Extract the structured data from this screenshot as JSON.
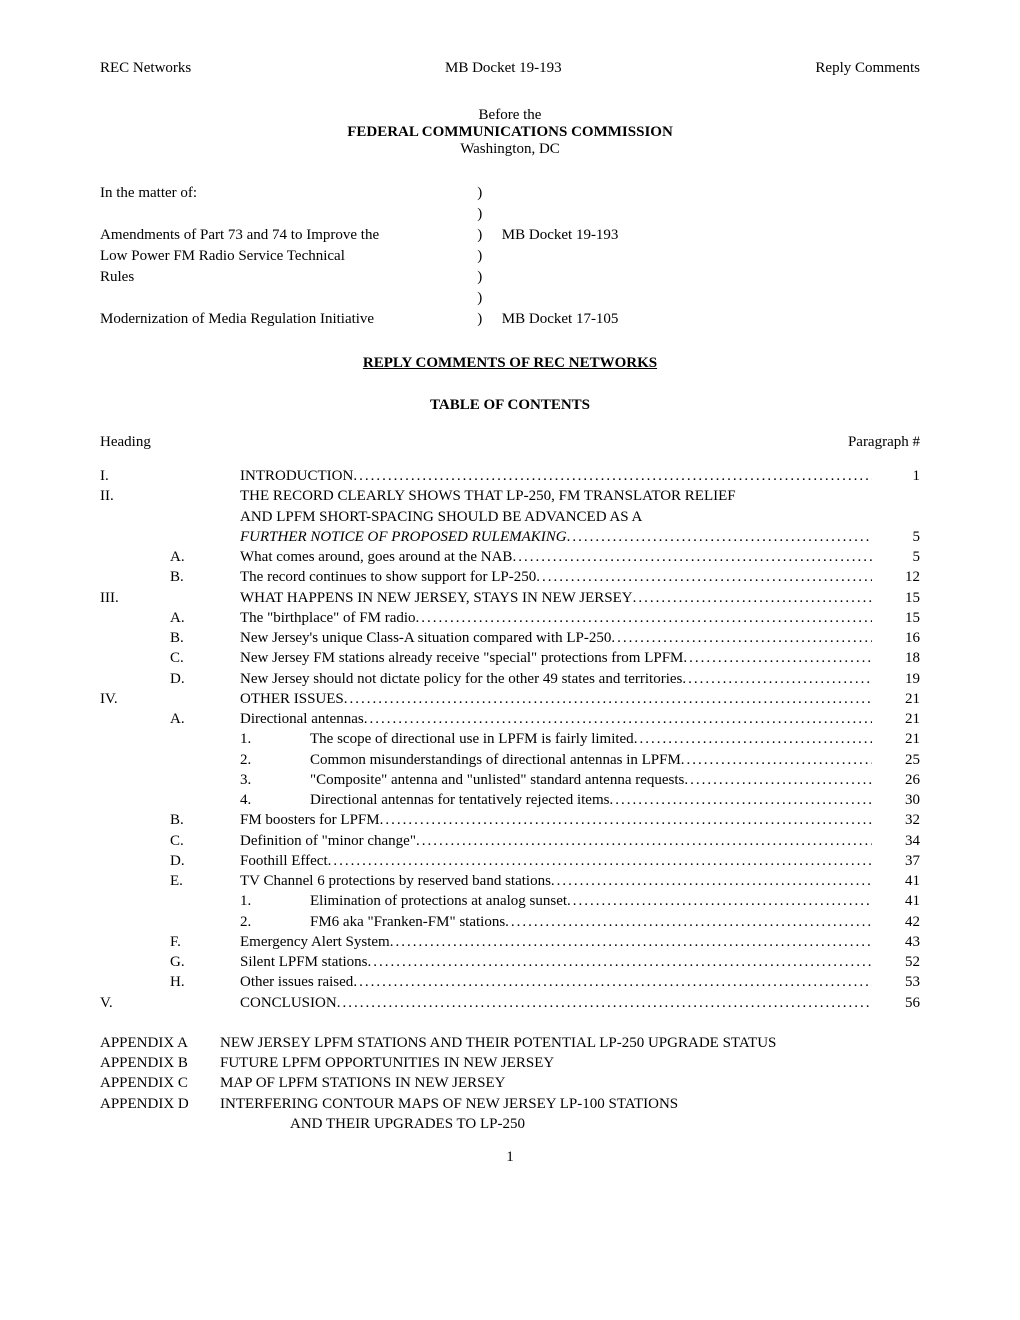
{
  "header": {
    "left": "REC Networks",
    "center": "MB Docket 19-193",
    "right": "Reply Comments"
  },
  "title": {
    "line1": "Before the",
    "line2": "FEDERAL COMMUNICATIONS COMMISSION",
    "line3": "Washington, DC"
  },
  "caption": {
    "intro": "In the matter of:",
    "item1_l1": "Amendments of Part 73 and 74 to Improve the",
    "item1_l2": "Low Power FM Radio Service Technical",
    "item1_l3": "Rules",
    "item1_docket": "MB Docket 19-193",
    "item2_l1": "Modernization of Media Regulation Initiative",
    "item2_docket": "MB Docket 17-105"
  },
  "reply_title": "REPLY COMMENTS OF REC NETWORKS",
  "toc_title": "TABLE OF CONTENTS",
  "heading_label": "Heading",
  "paragraph_label": "Paragraph #",
  "toc": [
    {
      "n1": "I.",
      "n2": "",
      "n3": "",
      "text": "INTRODUCTION",
      "page": "1",
      "leader": true
    },
    {
      "n1": "II.",
      "n2": "",
      "n3": "",
      "text": "THE RECORD CLEARLY SHOWS THAT LP-250, FM TRANSLATOR RELIEF",
      "page": "",
      "leader": false
    },
    {
      "cont": true,
      "text": "AND LPFM SHORT-SPACING SHOULD BE ADVANCED AS A",
      "page": "",
      "leader": false
    },
    {
      "cont": true,
      "italic": true,
      "text": "FURTHER NOTICE OF PROPOSED RULEMAKING",
      "page": "5",
      "leader": true
    },
    {
      "n1": "",
      "n2": "A.",
      "n3": "",
      "text": "What comes around, goes around at the NAB",
      "page": "5",
      "leader": true
    },
    {
      "n1": "",
      "n2": "B.",
      "n3": "",
      "text": "The record continues to show support for LP-250",
      "page": "12",
      "leader": true
    },
    {
      "n1": "III.",
      "n2": "",
      "n3": "",
      "text": "WHAT HAPPENS IN NEW JERSEY, STAYS IN NEW JERSEY",
      "page": "15",
      "leader": true
    },
    {
      "n1": "",
      "n2": "A.",
      "n3": "",
      "text": "The \"birthplace\" of FM radio",
      "page": "15",
      "leader": true
    },
    {
      "n1": "",
      "n2": "B.",
      "n3": "",
      "text": "New Jersey's unique Class-A situation compared with LP-250",
      "page": "16",
      "leader": true
    },
    {
      "n1": "",
      "n2": "C.",
      "n3": "",
      "text": "New Jersey FM stations already receive \"special\" protections from LPFM",
      "page": "18",
      "leader": true
    },
    {
      "n1": "",
      "n2": "D.",
      "n3": "",
      "text": "New Jersey should not dictate policy for the other 49 states and territories",
      "page": "19",
      "leader": true
    },
    {
      "n1": "IV.",
      "n2": "",
      "n3": "",
      "text": "OTHER ISSUES",
      "page": "21",
      "leader": true
    },
    {
      "n1": "",
      "n2": "A.",
      "n3": "",
      "text": "Directional antennas",
      "page": "21",
      "leader": true
    },
    {
      "n1": "",
      "n2": "",
      "n3": "1.",
      "text": "The scope of directional use in LPFM is fairly limited",
      "page": "21",
      "leader": true
    },
    {
      "n1": "",
      "n2": "",
      "n3": "2.",
      "text": "Common misunderstandings of directional antennas in LPFM",
      "page": "25",
      "leader": true
    },
    {
      "n1": "",
      "n2": "",
      "n3": "3.",
      "text": "\"Composite\" antenna and \"unlisted\" standard antenna requests",
      "page": "26",
      "leader": true
    },
    {
      "n1": "",
      "n2": "",
      "n3": "4.",
      "text": "Directional antennas for tentatively rejected items",
      "page": "30",
      "leader": true
    },
    {
      "n1": "",
      "n2": "B.",
      "n3": "",
      "text": "FM boosters for LPFM",
      "page": "32",
      "leader": true
    },
    {
      "n1": "",
      "n2": "C.",
      "n3": "",
      "text": "Definition of \"minor change\"",
      "page": "34",
      "leader": true
    },
    {
      "n1": "",
      "n2": "D.",
      "n3": "",
      "text": "Foothill Effect",
      "page": "37",
      "leader": true
    },
    {
      "n1": "",
      "n2": "E.",
      "n3": "",
      "text": "TV Channel 6 protections by reserved band stations",
      "page": "41",
      "leader": true
    },
    {
      "n1": "",
      "n2": "",
      "n3": "1.",
      "text": "Elimination of protections at analog sunset",
      "page": "41",
      "leader": true
    },
    {
      "n1": "",
      "n2": "",
      "n3": "2.",
      "text": "FM6 aka \"Franken-FM\" stations",
      "page": "42",
      "leader": true
    },
    {
      "n1": "",
      "n2": "F.",
      "n3": "",
      "text": "Emergency Alert System",
      "page": "43",
      "leader": true
    },
    {
      "n1": "",
      "n2": "G.",
      "n3": "",
      "text": "Silent LPFM stations",
      "page": "52",
      "leader": true
    },
    {
      "n1": "",
      "n2": "H.",
      "n3": "",
      "text": "Other issues raised",
      "page": "53",
      "leader": true
    },
    {
      "n1": "V.",
      "n2": "",
      "n3": "",
      "text": "CONCLUSION",
      "page": "56",
      "leader": true
    }
  ],
  "appendices": [
    {
      "label": "APPENDIX A",
      "text": "NEW JERSEY LPFM STATIONS AND THEIR POTENTIAL LP-250 UPGRADE STATUS"
    },
    {
      "label": "APPENDIX B",
      "text": "FUTURE LPFM OPPORTUNITIES IN NEW JERSEY"
    },
    {
      "label": "APPENDIX C",
      "text": "MAP OF LPFM STATIONS IN NEW JERSEY"
    },
    {
      "label": "APPENDIX D",
      "text": "INTERFERING CONTOUR MAPS OF NEW JERSEY LP-100 STATIONS"
    }
  ],
  "appendix_d_cont": "AND THEIR UPGRADES TO LP-250",
  "page_number": "1"
}
